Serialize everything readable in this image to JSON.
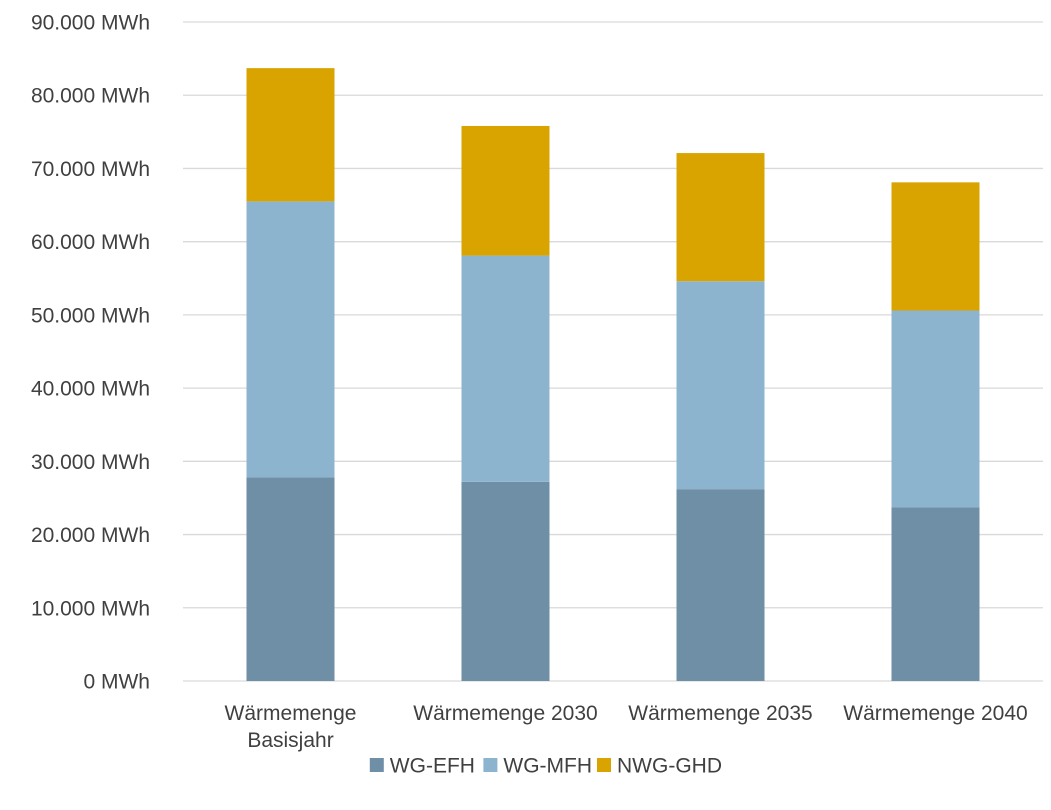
{
  "chart_data": {
    "type": "bar",
    "stacked": true,
    "title": "",
    "xlabel": "",
    "ylabel": "",
    "categories": [
      [
        "Wärmemenge",
        "Basisjahr"
      ],
      [
        "Wärmemenge 2030"
      ],
      [
        "Wärmemenge 2035"
      ],
      [
        "Wärmemenge 2040"
      ]
    ],
    "series": [
      {
        "name": "WG-EFH",
        "color": "#6F8FA6",
        "values": [
          27800,
          27200,
          26200,
          23700
        ]
      },
      {
        "name": "WG-MFH",
        "color": "#8DB4CF",
        "values": [
          37700,
          30900,
          28400,
          26900
        ]
      },
      {
        "name": "NWG-GHD",
        "color": "#D9A400",
        "values": [
          18200,
          17700,
          17500,
          17500
        ]
      }
    ],
    "ylim": [
      0,
      90000
    ],
    "y_ticks": [
      {
        "value": 0,
        "label": "0 MWh"
      },
      {
        "value": 10000,
        "label": "10.000 MWh"
      },
      {
        "value": 20000,
        "label": "20.000 MWh"
      },
      {
        "value": 30000,
        "label": "30.000 MWh"
      },
      {
        "value": 40000,
        "label": "40.000 MWh"
      },
      {
        "value": 50000,
        "label": "50.000 MWh"
      },
      {
        "value": 60000,
        "label": "60.000 MWh"
      },
      {
        "value": 70000,
        "label": "70.000 MWh"
      },
      {
        "value": 80000,
        "label": "80.000 MWh"
      },
      {
        "value": 90000,
        "label": "90.000 MWh"
      }
    ],
    "grid": true,
    "legend_position": "bottom",
    "colors": {
      "gridline": "#D9D9D9",
      "text": "#404040"
    }
  }
}
